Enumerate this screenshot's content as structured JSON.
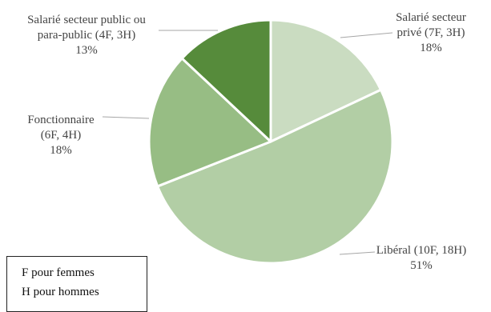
{
  "chart_data": {
    "type": "pie",
    "title": "",
    "slices": [
      {
        "label_lines": [
          "Salarié secteur",
          "privé (7F, 3H)",
          "18%"
        ],
        "value": 18,
        "color": "#cadcc1"
      },
      {
        "label_lines": [
          "Libéral (10F, 18H)",
          "51%"
        ],
        "value": 51,
        "color": "#b2cea5"
      },
      {
        "label_lines": [
          "Fonctionnaire",
          "(6F, 4H)",
          "18%"
        ],
        "value": 18,
        "color": "#97bd84"
      },
      {
        "label_lines": [
          "Salarié secteur public ou",
          "para-public (4F, 3H)",
          "13%"
        ],
        "value": 13,
        "color": "#568b3b"
      }
    ],
    "start_angle_deg": 0,
    "direction": "clockwise"
  },
  "legend_note": {
    "line1": "F pour femmes",
    "line2": "H pour hommes"
  }
}
